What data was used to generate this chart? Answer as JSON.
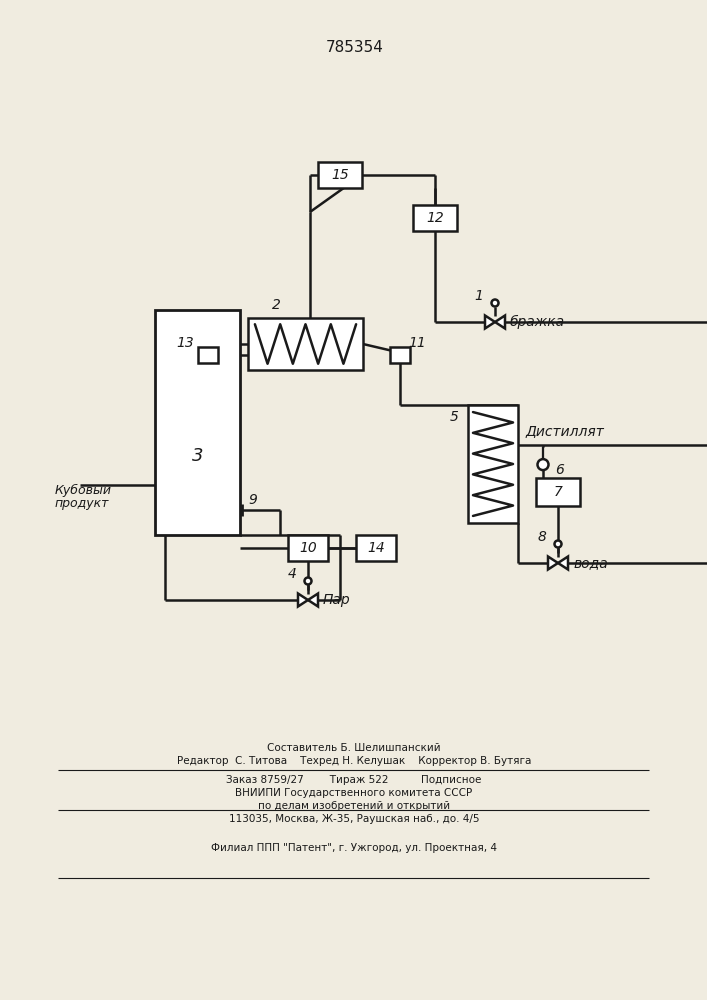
{
  "title": "785354",
  "bg_color": "#f0ece0",
  "line_color": "#1a1a1a",
  "footer": [
    "Составитель Б. Шелишпанский",
    "Редактор  С. Титова    Техред Н. Келушак    Корректор В. Бутяга",
    "Заказ 8759/27        Тираж 522          Подписное",
    "ВНИИПИ Государственного комитета СССР",
    "по делам изобретений и открытий",
    "113035, Москва, Ж-35, Раушская наб., до. 4/5",
    "Филиал ППП \"Патент\", г. Ужгород, ул. Проектная, 4"
  ],
  "brazhka": "бражка",
  "distillat": "Дистиллят",
  "voda": "вода",
  "par": "Пар",
  "kuboviy_line1": "Кубовый",
  "kuboviy_line2": "продукт"
}
